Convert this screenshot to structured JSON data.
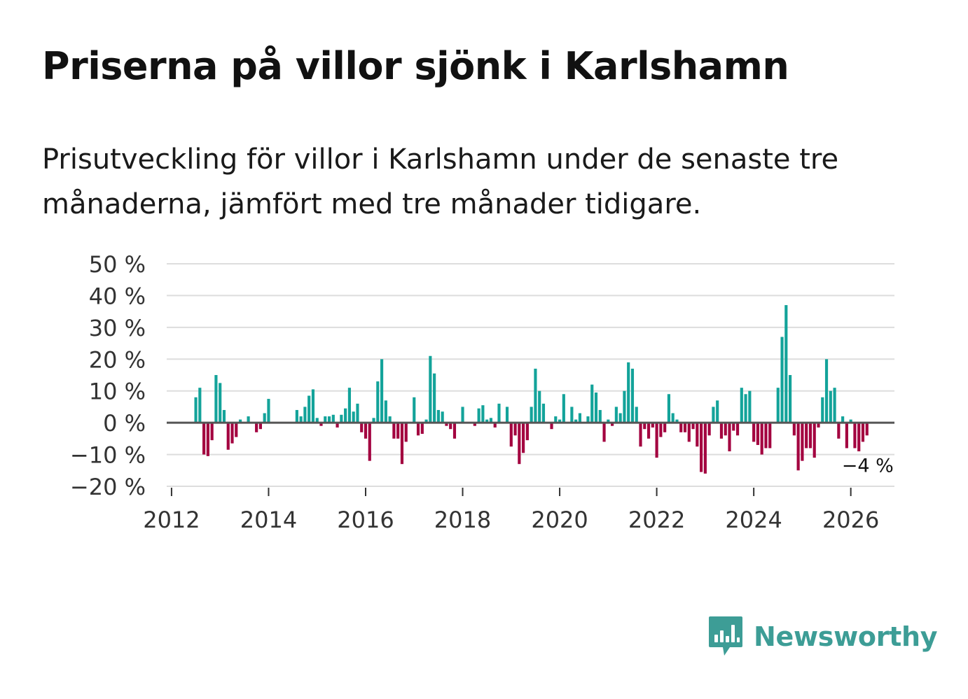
{
  "title": "Priserna på villor sjönk i Karlshamn",
  "subtitle": "Prisutveckling för villor i Karlshamn under de senaste tre månaderna, jämfört med tre månader tidigare.",
  "brand": "Newsworthy",
  "colors": {
    "positive": "#13a39a",
    "negative": "#a3003f",
    "grid": "#dddddd",
    "zero": "#555555",
    "brand": "#3d9d96"
  },
  "chart_data": {
    "type": "bar",
    "title": "Priserna på villor sjönk i Karlshamn",
    "xlabel": "",
    "ylabel": "",
    "ylim": [
      -20,
      50
    ],
    "xlim": [
      2011.9,
      2026.9
    ],
    "y_ticks": [
      {
        "value": 50,
        "label": "50 %"
      },
      {
        "value": 40,
        "label": "40 %"
      },
      {
        "value": 30,
        "label": "30 %"
      },
      {
        "value": 20,
        "label": "20 %"
      },
      {
        "value": 10,
        "label": "10 %"
      },
      {
        "value": 0,
        "label": "0 %"
      },
      {
        "value": -10,
        "label": "−10 %"
      },
      {
        "value": -20,
        "label": "−20 %"
      }
    ],
    "x_ticks": [
      {
        "value": 2012,
        "label": "2012"
      },
      {
        "value": 2014,
        "label": "2014"
      },
      {
        "value": 2016,
        "label": "2016"
      },
      {
        "value": 2018,
        "label": "2018"
      },
      {
        "value": 2020,
        "label": "2020"
      },
      {
        "value": 2022,
        "label": "2022"
      },
      {
        "value": 2024,
        "label": "2024"
      },
      {
        "value": 2026,
        "label": "2026"
      }
    ],
    "start": "2012-07",
    "frequency": "monthly",
    "values": [
      8,
      11,
      -10,
      -10.5,
      -5.5,
      15,
      12.5,
      4,
      -8.5,
      -6.5,
      -4.5,
      1,
      0,
      2,
      0,
      -3,
      -2,
      3,
      7.5,
      0,
      0,
      0,
      0,
      0,
      0,
      4,
      2,
      5,
      8.5,
      10.5,
      1.5,
      -1,
      2,
      2,
      2.5,
      -1.5,
      2.5,
      4.5,
      11,
      3.5,
      6,
      -3,
      -5,
      -12,
      1.5,
      13,
      20,
      7,
      2,
      -5,
      -5,
      -13,
      -6,
      0,
      8,
      -4,
      -3.5,
      1,
      21,
      15.5,
      4,
      3.5,
      -1,
      -2,
      -5,
      0,
      5,
      0,
      0,
      -1,
      4.5,
      5.5,
      1,
      1.5,
      -1.5,
      6,
      0,
      5,
      -7.5,
      -4,
      -13,
      -9.5,
      -5.5,
      5,
      17,
      10,
      6,
      0,
      -2,
      2,
      1,
      9,
      0,
      5,
      1,
      3,
      0,
      2,
      12,
      9.5,
      4,
      -6,
      1,
      -1,
      5,
      3,
      10,
      19,
      17,
      5,
      -7.5,
      -2,
      -5,
      -1.5,
      -11,
      -4.5,
      -3,
      9,
      3,
      1,
      -3,
      -3,
      -6,
      -2,
      -7.5,
      -15.5,
      -16,
      -4,
      5,
      7,
      -5,
      -4,
      -9,
      -2.5,
      -4,
      11,
      9,
      10,
      -6,
      -7,
      -10,
      -8,
      -8,
      0,
      11,
      27,
      37,
      15,
      -4,
      -15,
      -12,
      -8,
      -8,
      -11,
      -1.5,
      8,
      20,
      10,
      11,
      -5,
      2,
      -8,
      1,
      -8,
      -9,
      -6,
      -4
    ],
    "annotation": {
      "label": "−4 %",
      "value": -4
    }
  }
}
